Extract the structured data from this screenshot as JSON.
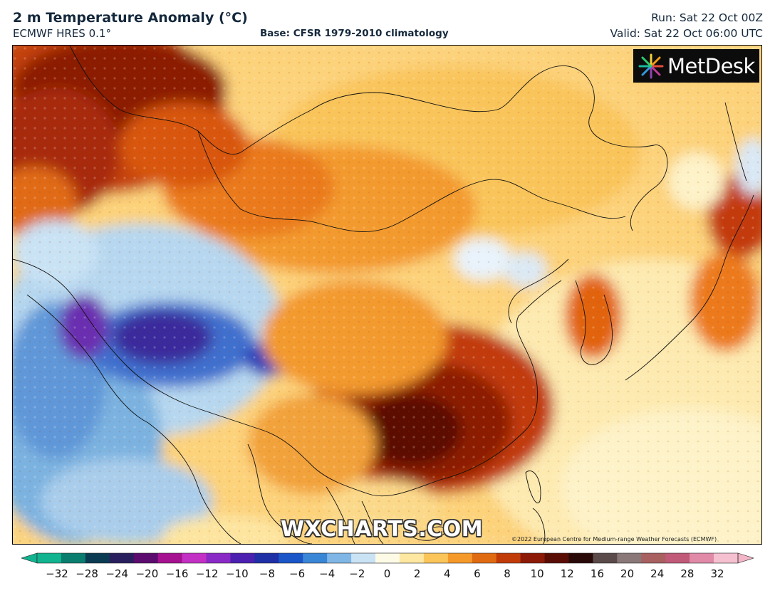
{
  "header": {
    "title": "2 m Temperature Anomaly (°C)",
    "subtitle": "ECMWF HRES 0.1°",
    "base": "Base: CFSR 1979-2010 climatology",
    "run": "Run: Sat 22 Oct 00Z",
    "valid": "Valid: Sat 22 Oct 06:00 UTC"
  },
  "branding": {
    "logo_text": "MetDesk",
    "watermark": "WXCHARTS.COM",
    "copyright": "©2022 European Centre for Medium-range Weather Forecasts (ECMWF)"
  },
  "legend": {
    "ticks": [
      "−32",
      "−28",
      "−24",
      "−20",
      "−16",
      "−12",
      "−10",
      "−8",
      "−6",
      "−4",
      "−2",
      "0",
      "2",
      "4",
      "6",
      "8",
      "10",
      "12",
      "16",
      "20",
      "24",
      "28",
      "32"
    ],
    "colors": [
      "#12b38f",
      "#0a7d6e",
      "#0b3b52",
      "#2a1f5e",
      "#5c0b6e",
      "#a5118f",
      "#c230c4",
      "#8a2ac6",
      "#4b1fb0",
      "#1f2fa5",
      "#1b56c8",
      "#3a86d6",
      "#7fb6e6",
      "#c9e2f4",
      "#fdfae6",
      "#fde7a1",
      "#fbc55a",
      "#f59a2a",
      "#e06a12",
      "#c13b08",
      "#8c1a06",
      "#5a0d05",
      "#2a0a08",
      "#5b4a4a",
      "#8a7878",
      "#a86060",
      "#c05a78",
      "#e08aa8",
      "#f5c0d0"
    ],
    "low_color": "#12b38f",
    "high_color": "#f2b6c8"
  },
  "map": {
    "region": "East and South Asia",
    "warm_colors": [
      "#fdfbe6",
      "#fdeeb0",
      "#fcd57a",
      "#f9b548",
      "#f28c24",
      "#e2630f",
      "#c33a07",
      "#8e1705",
      "#5c0b05"
    ],
    "cool_colors": [
      "#e8f3fb",
      "#b6d7ef",
      "#7bb2e0",
      "#3f7fce",
      "#1f4cb8",
      "#3a1fa0",
      "#7a1ca8"
    ]
  }
}
